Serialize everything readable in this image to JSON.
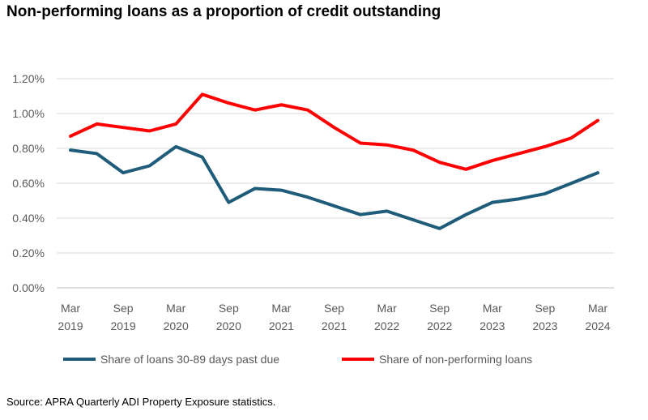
{
  "chart_data": {
    "type": "line",
    "title": "Non-performing loans as a proportion of credit outstanding",
    "source": "Source: APRA Quarterly ADI Property Exposure statistics.",
    "x_tick_labels": [
      [
        "Mar",
        "2019"
      ],
      [
        "Sep",
        "2019"
      ],
      [
        "Mar",
        "2020"
      ],
      [
        "Sep",
        "2020"
      ],
      [
        "Mar",
        "2021"
      ],
      [
        "Sep",
        "2021"
      ],
      [
        "Mar",
        "2022"
      ],
      [
        "Sep",
        "2022"
      ],
      [
        "Mar",
        "2023"
      ],
      [
        "Sep",
        "2023"
      ],
      [
        "Mar",
        "2024"
      ]
    ],
    "x": [
      "Mar 2019",
      "Jun 2019",
      "Sep 2019",
      "Dec 2019",
      "Mar 2020",
      "Jun 2020",
      "Sep 2020",
      "Dec 2020",
      "Mar 2021",
      "Jun 2021",
      "Sep 2021",
      "Dec 2021",
      "Mar 2022",
      "Jun 2022",
      "Sep 2022",
      "Dec 2022",
      "Mar 2023",
      "Jun 2023",
      "Sep 2023",
      "Dec 2023",
      "Mar 2024"
    ],
    "y_ticks": [
      "0.00%",
      "0.20%",
      "0.40%",
      "0.60%",
      "0.80%",
      "1.00%",
      "1.20%"
    ],
    "ylim": [
      0,
      1.2
    ],
    "grid": "horizontal",
    "legend": "bottom",
    "series": [
      {
        "name": "Share of loans 30-89 days past due",
        "color": "#1F5C7A",
        "values": [
          0.79,
          0.77,
          0.66,
          0.7,
          0.81,
          0.75,
          0.49,
          0.57,
          0.56,
          0.52,
          0.47,
          0.42,
          0.44,
          0.39,
          0.34,
          0.42,
          0.49,
          0.51,
          0.54,
          0.6,
          0.66
        ]
      },
      {
        "name": "Share of non-performing loans",
        "color": "#FF0000",
        "values": [
          0.87,
          0.94,
          0.92,
          0.9,
          0.94,
          1.11,
          1.06,
          1.02,
          1.05,
          1.02,
          0.92,
          0.83,
          0.82,
          0.79,
          0.72,
          0.68,
          0.73,
          0.77,
          0.81,
          0.86,
          0.96
        ]
      }
    ]
  }
}
